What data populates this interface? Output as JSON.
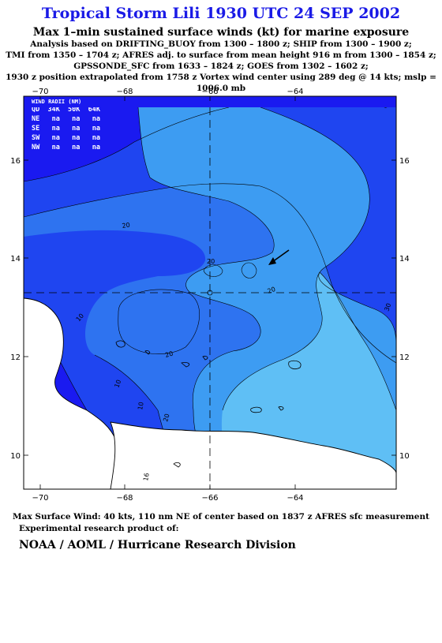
{
  "title": "Tropical Storm Lili 1930 UTC 24 SEP 2002",
  "subtitle": "Max 1–min sustained surface winds (kt) for marine exposure",
  "analysis_lines": [
    "Analysis based on  DRIFTING_BUOY from 1300 – 1800 z;  SHIP from 1300 – 1900 z;",
    "TMI from 1350 – 1704 z;  AFRES adj. to surface from mean height 916 m from 1300 – 1854 z;",
    "GPSSONDE_SFC from 1633 – 1824 z;  GOES from 1302 – 1602 z;",
    "1930 z position extrapolated from 1758 z Vortex wind center using 289 deg @ 14 kts; mslp = 1006.0 mb"
  ],
  "map": {
    "x_ticks": [
      "−70",
      "−68",
      "−66",
      "−64"
    ],
    "y_ticks": [
      "16",
      "14",
      "12",
      "10"
    ],
    "contour_labels": [
      "20",
      "20",
      "20",
      "10",
      "20",
      "20",
      "10",
      "10",
      "16",
      "30"
    ],
    "wind_radii": {
      "title": "WIND RADII (NM)",
      "header": "QD  34K  50K  64K",
      "rows": [
        "NE   na   na   na",
        "SE   na   na   na",
        "SW   na   na   na",
        "NW   na   na   na"
      ]
    },
    "colors": {
      "lt10": "#1a1af0",
      "c10_20": "#1f45f0",
      "c20_30": "#2e73f0",
      "c30_40": "#3d9cf2",
      "gt40": "#5fbff5",
      "land": "#ffffff"
    }
  },
  "footer": {
    "max_wind": "Max Surface Wind: 40 kts, 110 nm NE of center based on 1837 z AFRES sfc measurement",
    "experimental": "Experimental research product of:",
    "org": "NOAA / AOML / Hurricane Research Division"
  }
}
